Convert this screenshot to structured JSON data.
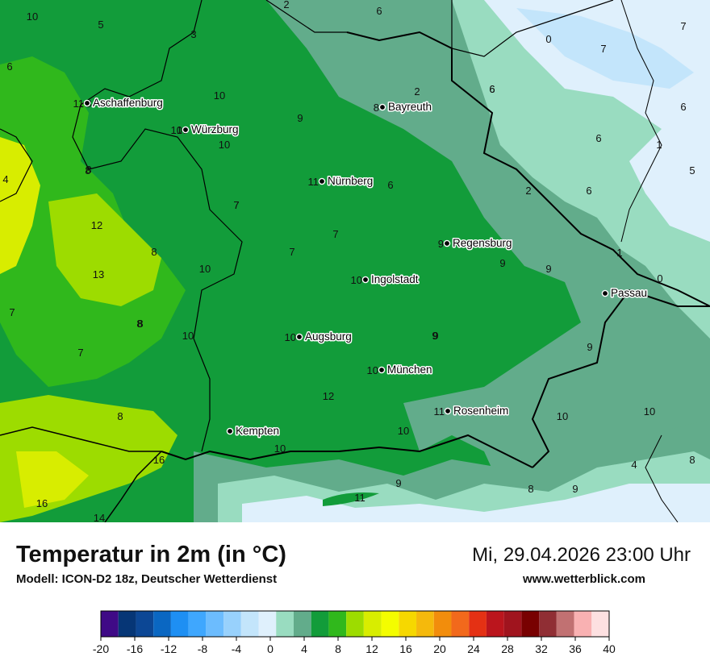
{
  "header": {
    "title": "Temperatur in 2m (in °C)",
    "model": "Modell: ICON-D2 18z, Deutscher Wetterdienst",
    "datetime": "Mi, 29.04.2026 23:00 Uhr",
    "site": "www.wetterblick.com"
  },
  "cities": [
    {
      "name": "Aschaffenburg",
      "value": "11"
    },
    {
      "name": "Würzburg",
      "value": "10"
    },
    {
      "name": "Bayreuth",
      "value": "8"
    },
    {
      "name": "Nürnberg",
      "value": "11"
    },
    {
      "name": "Regensburg",
      "value": "9"
    },
    {
      "name": "Ingolstadt",
      "value": "10"
    },
    {
      "name": "Passau",
      "value": ""
    },
    {
      "name": "Augsburg",
      "value": "10"
    },
    {
      "name": "München",
      "value": "10"
    },
    {
      "name": "Rosenheim",
      "value": "11"
    },
    {
      "name": "Kempten",
      "value": ""
    }
  ],
  "grid_values": [
    "10",
    "5",
    "8",
    "2",
    "6",
    "0",
    "7",
    "3",
    "6",
    "7",
    "10",
    "2",
    "6",
    "6",
    "9",
    "10",
    "10",
    "6",
    "1",
    "5",
    "8",
    "4",
    "6",
    "2",
    "6",
    "7",
    "12",
    "7",
    "8",
    "10",
    "7",
    "9",
    "1",
    "9",
    "13",
    "0",
    "8",
    "10",
    "9",
    "7",
    "7",
    "9",
    "8",
    "12",
    "10",
    "10",
    "10",
    "16",
    "10",
    "4",
    "8",
    "9",
    "8",
    "9",
    "11",
    "16",
    "14",
    "8",
    "6",
    "8",
    "9",
    "7"
  ],
  "legend": {
    "colors": [
      "#3f0a86",
      "#063676",
      "#0c4795",
      "#0a67c2",
      "#1e8ff3",
      "#3fa7fe",
      "#6cbcfe",
      "#98d1fc",
      "#c3e5fb",
      "#dff0fc",
      "#99dcc0",
      "#62ac8b",
      "#129c3a",
      "#30b81c",
      "#9ddc00",
      "#d8ed00",
      "#f4fd00",
      "#f6d800",
      "#f5b90c",
      "#f28d0c",
      "#f2691c",
      "#e43114",
      "#bb151d",
      "#a0141e",
      "#780101",
      "#902e34",
      "#c17172",
      "#f9b1b2",
      "#fde0e1"
    ],
    "ticks": [
      "-20",
      "-16",
      "-12",
      "-8",
      "-4",
      "0",
      "4",
      "8",
      "12",
      "16",
      "20",
      "24",
      "28",
      "32",
      "36",
      "40"
    ]
  }
}
